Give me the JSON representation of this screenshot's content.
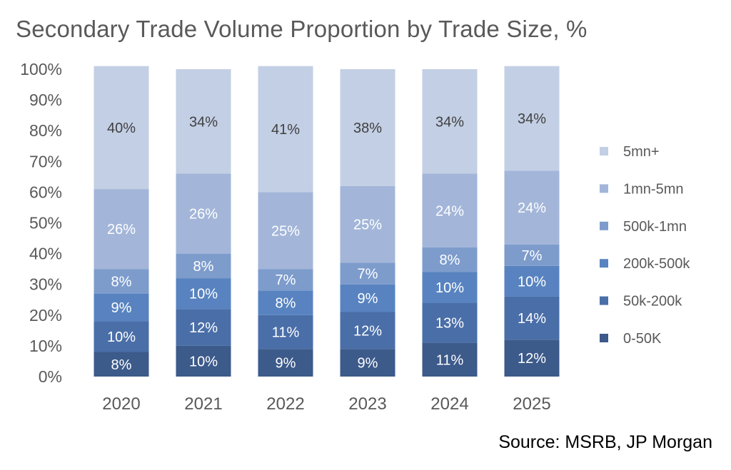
{
  "chart_data": {
    "type": "bar",
    "stacked": true,
    "title": "Secondary Trade Volume Proportion by Trade Size, %",
    "categories": [
      "2020",
      "2021",
      "2022",
      "2023",
      "2024",
      "2025"
    ],
    "y_ticks": [
      "0%",
      "10%",
      "20%",
      "30%",
      "40%",
      "50%",
      "60%",
      "70%",
      "80%",
      "90%",
      "100%"
    ],
    "ylim": [
      0,
      100
    ],
    "grid": false,
    "legend_position": "right",
    "series": [
      {
        "name": "0-50K",
        "color": "#3c5a8a",
        "label_color": "#ffffff",
        "values": [
          8,
          10,
          9,
          9,
          11,
          12
        ],
        "labels": [
          "8%",
          "10%",
          "9%",
          "9%",
          "11%",
          "12%"
        ]
      },
      {
        "name": "50k-200k",
        "color": "#4a6ea8",
        "label_color": "#ffffff",
        "values": [
          10,
          12,
          11,
          12,
          13,
          14
        ],
        "labels": [
          "10%",
          "12%",
          "11%",
          "12%",
          "13%",
          "14%"
        ]
      },
      {
        "name": "200k-500k",
        "color": "#5883c0",
        "label_color": "#ffffff",
        "values": [
          9,
          10,
          8,
          9,
          10,
          10
        ],
        "labels": [
          "9%",
          "10%",
          "8%",
          "9%",
          "10%",
          "10%"
        ]
      },
      {
        "name": "500k-1mn",
        "color": "#7d9ccc",
        "label_color": "#ffffff",
        "values": [
          8,
          8,
          7,
          7,
          8,
          7
        ],
        "labels": [
          "8%",
          "8%",
          "7%",
          "7%",
          "8%",
          "7%"
        ]
      },
      {
        "name": "1mn-5mn",
        "color": "#a3b6d9",
        "label_color": "#ffffff",
        "values": [
          26,
          26,
          25,
          25,
          24,
          24
        ],
        "labels": [
          "26%",
          "26%",
          "25%",
          "25%",
          "24%",
          "24%"
        ]
      },
      {
        "name": "5mn+",
        "color": "#c3cfe4",
        "label_color": "#404040",
        "values": [
          40,
          34,
          41,
          38,
          34,
          34
        ],
        "labels": [
          "40%",
          "34%",
          "41%",
          "38%",
          "34%",
          "34%"
        ]
      }
    ]
  },
  "source": "Source: MSRB, JP Morgan"
}
